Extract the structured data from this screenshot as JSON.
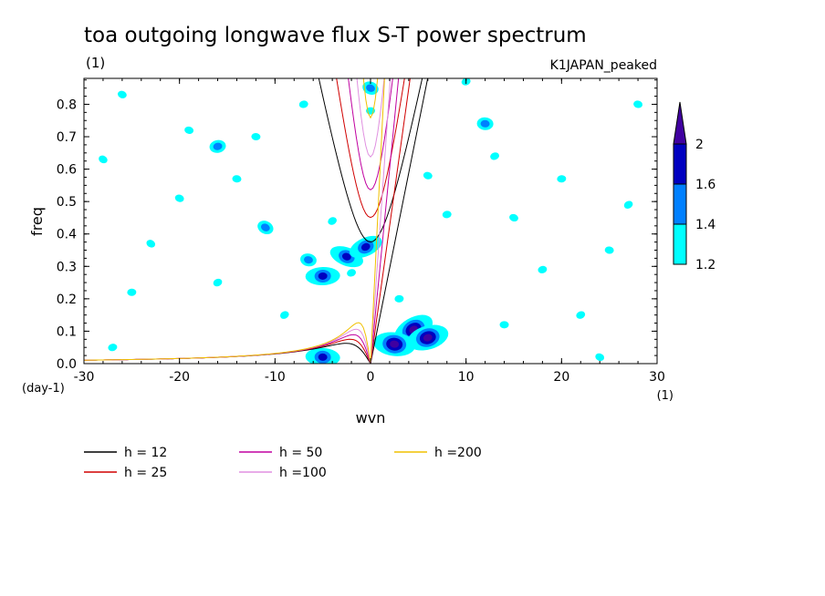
{
  "chart_data": {
    "type": "contour",
    "title": "toa outgoing longwave flux S-T power spectrum",
    "title_units": "(1)",
    "subtitle": "K1JAPAN_peaked",
    "xlabel": "wvn",
    "ylabel": "freq",
    "x_units": "(1)",
    "y_units": "(day-1)",
    "xlim": [
      -30,
      30
    ],
    "ylim": [
      0,
      0.88
    ],
    "x_ticks": [
      -30,
      -20,
      -10,
      0,
      10,
      20,
      30
    ],
    "x_tick_labels": [
      "-30",
      "-20",
      "-10",
      "0",
      "10",
      "20",
      "30"
    ],
    "y_ticks": [
      0,
      0.1,
      0.2,
      0.3,
      0.4,
      0.5,
      0.6,
      0.7,
      0.8
    ],
    "y_tick_labels": [
      "0.0",
      "0.1",
      "0.2",
      "0.3",
      "0.4",
      "0.5",
      "0.6",
      "0.7",
      "0.8"
    ],
    "colorbar": {
      "levels": [
        1.2,
        1.4,
        1.6,
        2
      ],
      "labels": [
        "1.2",
        "1.4",
        "1.6",
        "2"
      ],
      "colors": [
        "#00ffff",
        "#0080ff",
        "#0000c0",
        "#4000a0"
      ]
    },
    "contour_blobs": [
      {
        "x": 4.5,
        "y": 0.105,
        "level": 3
      },
      {
        "x": 2.5,
        "y": 0.06,
        "level": 3
      },
      {
        "x": 6,
        "y": 0.08,
        "level": 3
      },
      {
        "x": -2.5,
        "y": 0.33,
        "level": 2
      },
      {
        "x": -5,
        "y": 0.27,
        "level": 2
      },
      {
        "x": -0.5,
        "y": 0.36,
        "level": 2
      },
      {
        "x": -6.5,
        "y": 0.32,
        "level": 1
      },
      {
        "x": -16,
        "y": 0.67,
        "level": 1
      },
      {
        "x": -11,
        "y": 0.42,
        "level": 1
      },
      {
        "x": -5,
        "y": 0.02,
        "level": 2
      },
      {
        "x": -2,
        "y": 0.28,
        "level": 0
      },
      {
        "x": -20,
        "y": 0.51,
        "level": 0
      },
      {
        "x": -25,
        "y": 0.22,
        "level": 0
      },
      {
        "x": -9,
        "y": 0.15,
        "level": 0
      },
      {
        "x": -14,
        "y": 0.57,
        "level": 0
      },
      {
        "x": -27,
        "y": 0.05,
        "level": 0
      },
      {
        "x": 0,
        "y": 0.85,
        "level": 1
      },
      {
        "x": 0,
        "y": 0.78,
        "level": 0
      },
      {
        "x": -16,
        "y": 0.25,
        "level": 0
      },
      {
        "x": -19,
        "y": 0.72,
        "level": 0
      },
      {
        "x": -7,
        "y": 0.8,
        "level": 0
      },
      {
        "x": -28,
        "y": 0.63,
        "level": 0
      },
      {
        "x": 12,
        "y": 0.74,
        "level": 1
      },
      {
        "x": 13,
        "y": 0.64,
        "level": 0
      },
      {
        "x": 15,
        "y": 0.45,
        "level": 0
      },
      {
        "x": 20,
        "y": 0.57,
        "level": 0
      },
      {
        "x": 27,
        "y": 0.49,
        "level": 0
      },
      {
        "x": 25,
        "y": 0.35,
        "level": 0
      },
      {
        "x": 18,
        "y": 0.29,
        "level": 0
      },
      {
        "x": 24,
        "y": 0.02,
        "level": 0
      },
      {
        "x": 14,
        "y": 0.12,
        "level": 0
      },
      {
        "x": 22,
        "y": 0.15,
        "level": 0
      },
      {
        "x": 6,
        "y": 0.58,
        "level": 0
      },
      {
        "x": 8,
        "y": 0.46,
        "level": 0
      },
      {
        "x": -23,
        "y": 0.37,
        "level": 0
      },
      {
        "x": -12,
        "y": 0.7,
        "level": 0
      },
      {
        "x": 10,
        "y": 0.87,
        "level": 0
      },
      {
        "x": -26,
        "y": 0.83,
        "level": 0
      },
      {
        "x": 3,
        "y": 0.2,
        "level": 0
      },
      {
        "x": -4,
        "y": 0.44,
        "level": 0
      },
      {
        "x": 28,
        "y": 0.8,
        "level": 0
      }
    ],
    "series": [
      {
        "name": "h = 12",
        "h": 12,
        "color": "#000000"
      },
      {
        "name": "h = 25",
        "h": 25,
        "color": "#d00000"
      },
      {
        "name": "h = 50",
        "h": 50,
        "color": "#c000a0"
      },
      {
        "name": "h =100",
        "h": 100,
        "color": "#e090e0"
      },
      {
        "name": "h =200",
        "h": 200,
        "color": "#f0c000"
      }
    ]
  }
}
